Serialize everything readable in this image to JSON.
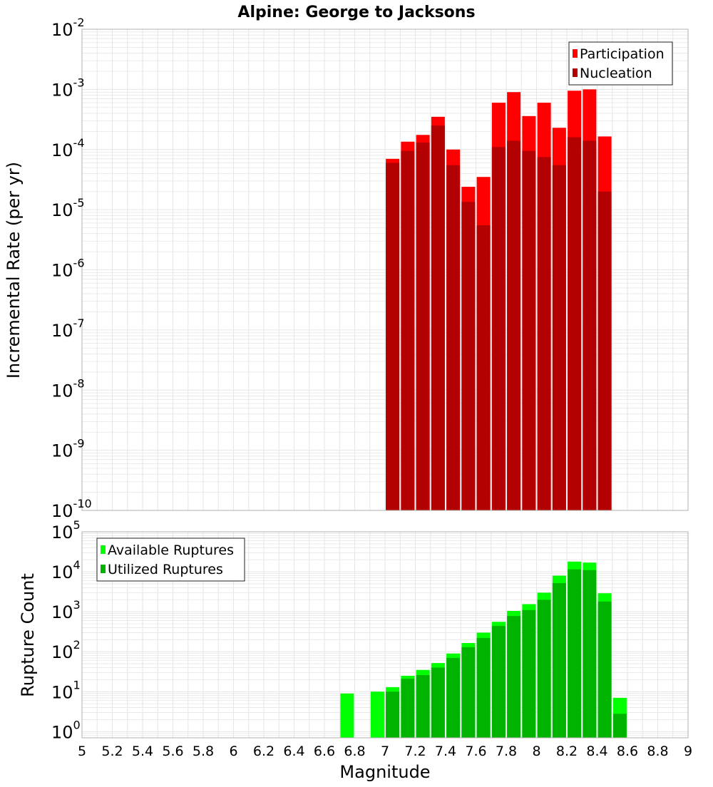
{
  "title": "Alpine: George to Jacksons",
  "colors": {
    "participation": "#ff0000",
    "nucleation": "#b30000",
    "available": "#00ff00",
    "utilized": "#00b300",
    "grid": "#e6e6e6",
    "frame": "#b0b0b0"
  },
  "chart_data": [
    {
      "type": "bar",
      "y_scale": "log",
      "ylim": [
        1e-10,
        0.01
      ],
      "xlim": [
        5,
        9
      ],
      "ylabel": "Incremental Rate (per yr)",
      "y_tick_exponents": [
        "-10",
        "-9",
        "-8",
        "-7",
        "-6",
        "-5",
        "-4",
        "-3",
        "-2"
      ],
      "grid": true,
      "legend_position": "top-right",
      "x": [
        7.0,
        7.1,
        7.2,
        7.3,
        7.4,
        7.5,
        7.6,
        7.7,
        7.8,
        7.9,
        8.0,
        8.1,
        8.2,
        8.3,
        8.4
      ],
      "series": [
        {
          "name": "Participation",
          "values": [
            7e-05,
            0.000135,
            0.000175,
            0.00035,
            0.0001,
            2.4e-05,
            3.5e-05,
            0.0006,
            0.0009,
            0.00036,
            0.0006,
            0.00023,
            0.00095,
            0.001,
            0.000165
          ]
        },
        {
          "name": "Nucleation",
          "values": [
            6e-05,
            9.5e-05,
            0.00013,
            0.00025,
            5.5e-05,
            1.35e-05,
            5.5e-06,
            0.00011,
            0.00014,
            9.5e-05,
            7.5e-05,
            5.5e-05,
            0.00016,
            0.00014,
            2e-05
          ]
        }
      ]
    },
    {
      "type": "bar",
      "y_scale": "log",
      "ylim": [
        0.7,
        100000.0
      ],
      "xlim": [
        5,
        9
      ],
      "xlabel": "Magnitude",
      "ylabel": "Rupture Count",
      "x_ticks": [
        "5",
        "5.2",
        "5.4",
        "5.6",
        "5.8",
        "6",
        "6.2",
        "6.4",
        "6.6",
        "6.8",
        "7",
        "7.2",
        "7.4",
        "7.6",
        "7.8",
        "8",
        "8.2",
        "8.4",
        "8.6",
        "8.8",
        "9"
      ],
      "y_tick_exponents": [
        "0",
        "1",
        "2",
        "3",
        "4",
        "5"
      ],
      "grid": true,
      "legend_position": "top-left",
      "x": [
        6.7,
        6.9,
        7.0,
        7.1,
        7.2,
        7.3,
        7.4,
        7.5,
        7.6,
        7.7,
        7.8,
        7.9,
        8.0,
        8.1,
        8.2,
        8.3,
        8.4,
        8.5
      ],
      "series": [
        {
          "name": "Available Ruptures",
          "values": [
            9,
            10,
            13,
            25,
            35,
            52,
            90,
            165,
            300,
            560,
            1050,
            1550,
            3000,
            8000,
            18000,
            17000,
            2900,
            7
          ]
        },
        {
          "name": "Utilized Ruptures",
          "values": [
            0,
            0,
            10,
            21,
            26,
            40,
            70,
            130,
            220,
            440,
            780,
            1100,
            2000,
            5200,
            11500,
            11000,
            1800,
            2.8
          ]
        }
      ]
    }
  ]
}
